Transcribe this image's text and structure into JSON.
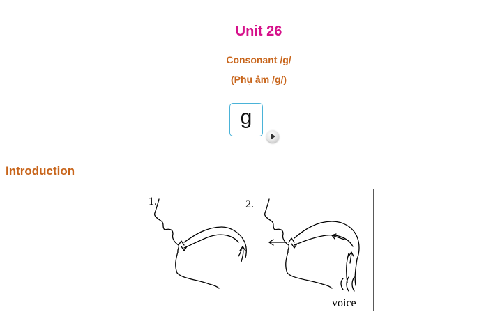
{
  "header": {
    "unit_title": "Unit 26",
    "subtitle_en": "Consonant /g/",
    "subtitle_vi": "(Phụ âm /g/)"
  },
  "phoneme": {
    "symbol": "g",
    "play_icon": "play-icon"
  },
  "introduction": {
    "heading": "Introduction",
    "figure": {
      "label_1": "1.",
      "label_2": "2.",
      "voice_label": "voice"
    }
  },
  "colors": {
    "title": "#d6118b",
    "subtitle": "#c8651b",
    "box_border": "#4ab3d8"
  }
}
